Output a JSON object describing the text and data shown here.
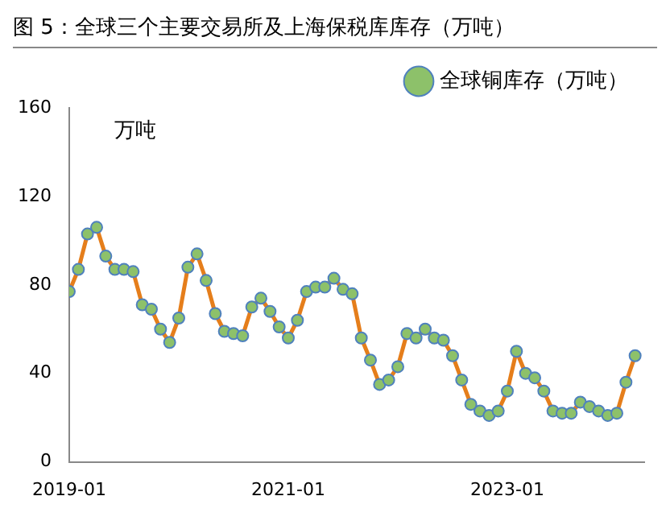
{
  "chart_data": {
    "type": "line",
    "title": "图 5：全球三个主要交易所及上海保税库库存（万吨）",
    "annotations": [
      "万吨"
    ],
    "x": [
      "2019-01",
      "2019-02",
      "2019-03",
      "2019-04",
      "2019-05",
      "2019-06",
      "2019-07",
      "2019-08",
      "2019-09",
      "2019-10",
      "2019-11",
      "2019-12",
      "2020-01",
      "2020-02",
      "2020-03",
      "2020-04",
      "2020-05",
      "2020-06",
      "2020-07",
      "2020-08",
      "2020-09",
      "2020-10",
      "2020-11",
      "2020-12",
      "2021-01",
      "2021-02",
      "2021-03",
      "2021-04",
      "2021-05",
      "2021-06",
      "2021-07",
      "2021-08",
      "2021-09",
      "2021-10",
      "2021-11",
      "2021-12",
      "2022-01",
      "2022-02",
      "2022-03",
      "2022-04",
      "2022-05",
      "2022-06",
      "2022-07",
      "2022-08",
      "2022-09",
      "2022-10",
      "2022-11",
      "2022-12",
      "2023-01",
      "2023-02",
      "2023-03",
      "2023-04",
      "2023-05",
      "2023-06",
      "2023-07",
      "2023-08",
      "2023-09",
      "2023-10",
      "2023-11",
      "2023-12",
      "2024-01",
      "2024-02",
      "2024-03"
    ],
    "series": [
      {
        "name": "全球铜库存（万吨）",
        "color": "#e57e1b",
        "values": [
          77,
          87,
          103,
          106,
          93,
          87,
          87,
          86,
          71,
          69,
          60,
          54,
          65,
          88,
          94,
          82,
          67,
          59,
          58,
          57,
          70,
          74,
          68,
          61,
          56,
          64,
          77,
          79,
          79,
          83,
          78,
          76,
          56,
          46,
          35,
          37,
          43,
          58,
          56,
          60,
          56,
          55,
          48,
          37,
          26,
          23,
          21,
          23,
          32,
          50,
          40,
          38,
          32,
          23,
          22,
          22,
          27,
          25,
          23,
          21,
          22,
          36,
          48
        ]
      }
    ],
    "xlim": [
      "2019-01",
      "2024-04"
    ],
    "xticks": [
      "2019-01",
      "2021-01",
      "2023-01"
    ],
    "ylim": [
      0,
      160
    ],
    "yticks": [
      0,
      40,
      80,
      120,
      160
    ],
    "grid": false,
    "legend": "top right",
    "marker": "circle",
    "line_style": "solid"
  }
}
